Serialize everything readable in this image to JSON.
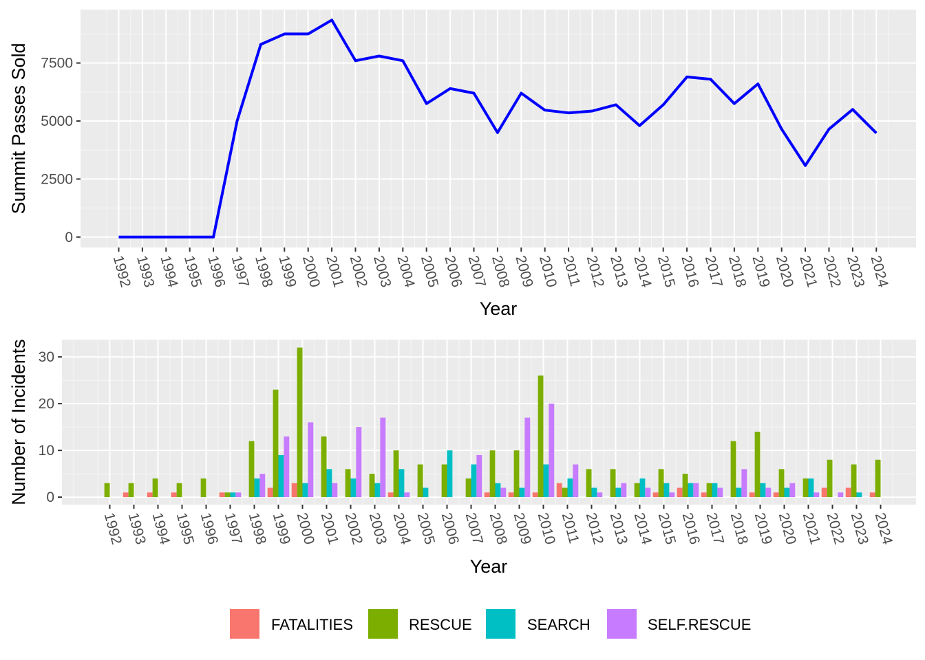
{
  "chart_data": [
    {
      "type": "line",
      "xlabel": "Year",
      "ylabel": "Summit Passes Sold",
      "ylim": [
        -450,
        9800
      ],
      "yticks": [
        0,
        2500,
        5000,
        7500
      ],
      "grid": true,
      "line_color": "#0000ff",
      "x": [
        "1992",
        "1993",
        "1994",
        "1995",
        "1996",
        "1997",
        "1998",
        "1999",
        "2000",
        "2001",
        "2002",
        "2003",
        "2004",
        "2005",
        "2006",
        "2007",
        "2008",
        "2009",
        "2010",
        "2011",
        "2012",
        "2013",
        "2014",
        "2015",
        "2016",
        "2017",
        "2018",
        "2019",
        "2020",
        "2021",
        "2022",
        "2023",
        "2024"
      ],
      "series": [
        {
          "values": [
            0,
            0,
            0,
            0,
            0,
            5000,
            8300,
            8750,
            8750,
            9350,
            7600,
            7800,
            7600,
            5750,
            6400,
            6200,
            4500,
            6200,
            5470,
            5350,
            5430,
            5700,
            4800,
            5700,
            6900,
            6800,
            5750,
            6600,
            4650,
            3080,
            4650,
            5500,
            4480
          ]
        }
      ]
    },
    {
      "type": "bar",
      "xlabel": "Year",
      "ylabel": "Number of Incidents",
      "ylim": [
        -1.6,
        33.7
      ],
      "yticks": [
        0,
        10,
        20,
        30
      ],
      "grid": true,
      "legend_position": "bottom",
      "categories": [
        "1992",
        "1993",
        "1994",
        "1995",
        "1996",
        "1997",
        "1998",
        "1999",
        "2000",
        "2001",
        "2002",
        "2003",
        "2004",
        "2005",
        "2006",
        "2007",
        "2008",
        "2009",
        "2010",
        "2011",
        "2012",
        "2013",
        "2014",
        "2015",
        "2016",
        "2017",
        "2018",
        "2019",
        "2020",
        "2021",
        "2022",
        "2023",
        "2024"
      ],
      "series": [
        {
          "name": "FATALITIES",
          "color": "#f8766d",
          "values": [
            0,
            1,
            1,
            1,
            0,
            1,
            0,
            2,
            3,
            0,
            0,
            0,
            1,
            0,
            0,
            0,
            1,
            1,
            1,
            3,
            0,
            0,
            0,
            1,
            2,
            1,
            0,
            1,
            1,
            0,
            2,
            2,
            1
          ]
        },
        {
          "name": "RESCUE",
          "color": "#7cae00",
          "values": [
            3,
            3,
            4,
            3,
            4,
            1,
            12,
            23,
            32,
            13,
            6,
            5,
            10,
            7,
            7,
            4,
            10,
            10,
            26,
            2,
            6,
            6,
            3,
            6,
            5,
            3,
            12,
            14,
            6,
            4,
            8,
            7,
            8
          ]
        },
        {
          "name": "SEARCH",
          "color": "#00bfc4",
          "values": [
            0,
            0,
            0,
            0,
            0,
            1,
            4,
            9,
            3,
            6,
            4,
            3,
            6,
            2,
            10,
            7,
            3,
            2,
            7,
            4,
            2,
            2,
            4,
            3,
            3,
            3,
            2,
            3,
            2,
            4,
            0,
            1,
            0
          ]
        },
        {
          "name": "SELF.RESCUE",
          "color": "#c77cff",
          "values": [
            0,
            0,
            0,
            0,
            0,
            1,
            5,
            13,
            16,
            3,
            15,
            17,
            1,
            0,
            0,
            9,
            2,
            17,
            20,
            7,
            1,
            3,
            2,
            1,
            3,
            2,
            6,
            2,
            3,
            1,
            1,
            0,
            0
          ]
        }
      ]
    }
  ]
}
